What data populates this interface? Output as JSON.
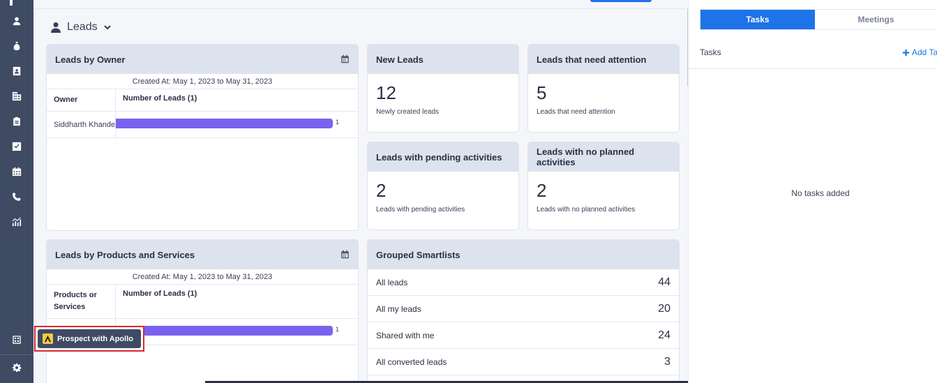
{
  "nav": {
    "items": [
      {
        "icon": "user-icon"
      },
      {
        "icon": "money-bag-icon"
      },
      {
        "icon": "contact-card-icon"
      },
      {
        "icon": "building-icon"
      },
      {
        "icon": "clipboard-icon"
      },
      {
        "icon": "checkbox-icon"
      },
      {
        "icon": "calendar-icon"
      },
      {
        "icon": "phone-icon"
      },
      {
        "icon": "analytics-icon"
      }
    ],
    "bottom": [
      {
        "icon": "apps-grid-icon"
      },
      {
        "icon": "gear-icon"
      }
    ]
  },
  "header": {
    "title": "Leads",
    "icon": "person-icon"
  },
  "leads_by_owner": {
    "title": "Leads by Owner",
    "created": "Created At: May 1, 2023 to May 31, 2023",
    "col1": "Owner",
    "col2": "Number of Leads (1)",
    "rows": [
      {
        "label": "Siddharth Khandelwal",
        "value": 1,
        "value_label": "1"
      }
    ]
  },
  "stats": {
    "new": {
      "title": "New Leads",
      "value": "12",
      "sub": "Newly created leads"
    },
    "attention": {
      "title": "Leads that need attention",
      "value": "5",
      "sub": "Leads that need attention"
    },
    "pending": {
      "title": "Leads with pending activities",
      "value": "2",
      "sub": "Leads with pending activities"
    },
    "no_planned": {
      "title": "Leads with no planned activities",
      "value": "2",
      "sub": "Leads with no planned activities"
    }
  },
  "leads_by_products": {
    "title": "Leads by Products and Services",
    "created": "Created At: May 1, 2023 to May 31, 2023",
    "col1": "Products or Services",
    "col2": "Number of Leads (1)",
    "rows": [
      {
        "label": "",
        "value": 1,
        "value_label": "1"
      }
    ]
  },
  "smartlists": {
    "title": "Grouped Smartlists",
    "items": [
      {
        "label": "All leads",
        "count": "44"
      },
      {
        "label": "All my leads",
        "count": "20"
      },
      {
        "label": "Shared with me",
        "count": "24"
      },
      {
        "label": "All converted leads",
        "count": "3"
      }
    ]
  },
  "right_panel": {
    "tabs": [
      {
        "label": "Tasks",
        "active": true
      },
      {
        "label": "Meetings",
        "active": false
      }
    ],
    "section_label": "Tasks",
    "add_label": "Add Task",
    "empty_text": "No tasks added"
  },
  "apollo": {
    "label": "Prospect with Apollo"
  },
  "colors": {
    "nav_bg": "#3f4a63",
    "accent": "#1f73e8",
    "bar": "#7b61f0",
    "highlight_border": "#d9282f"
  }
}
